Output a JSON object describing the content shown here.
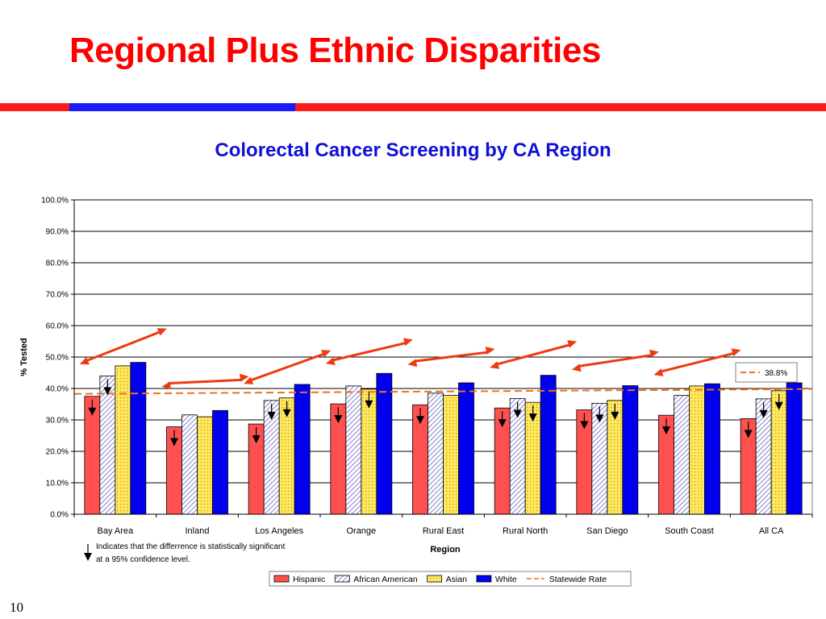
{
  "slide": {
    "title": "Regional Plus Ethnic Disparities",
    "number": "10",
    "colors": {
      "title": "#ff0000",
      "rule_red": "#ff1a1a",
      "rule_blue": "#1a1aff"
    }
  },
  "chart_data": {
    "type": "bar",
    "title": "Colorectal Cancer Screening by CA Region",
    "xlabel": "Region",
    "ylabel": "% Tested",
    "ylim": [
      0,
      100
    ],
    "yticks": [
      "0.0%",
      "10.0%",
      "20.0%",
      "30.0%",
      "40.0%",
      "50.0%",
      "60.0%",
      "70.0%",
      "80.0%",
      "90.0%",
      "100.0%"
    ],
    "grid": true,
    "categories": [
      "Bay Area",
      "Inland",
      "Los Angeles",
      "Orange",
      "Rural East",
      "Rural North",
      "San Diego",
      "South Coast",
      "All CA"
    ],
    "series": [
      {
        "name": "Hispanic",
        "color": "#ff5050",
        "pattern": "solid",
        "values": [
          37.5,
          27.8,
          28.7,
          35.1,
          34.8,
          33.8,
          33.2,
          31.5,
          30.4
        ],
        "significant": [
          true,
          true,
          true,
          true,
          true,
          true,
          true,
          true,
          true
        ]
      },
      {
        "name": "African American",
        "color": "#c8c8f0",
        "pattern": "diagonal",
        "values": [
          44.0,
          31.6,
          36.2,
          40.8,
          38.5,
          36.8,
          35.3,
          37.8,
          36.7
        ],
        "significant": [
          true,
          false,
          true,
          false,
          false,
          true,
          true,
          false,
          true
        ]
      },
      {
        "name": "Asian",
        "color": "#ffe860",
        "pattern": "dots",
        "values": [
          47.2,
          31.0,
          37.0,
          39.8,
          37.8,
          35.6,
          36.2,
          40.8,
          39.3
        ],
        "significant": [
          false,
          false,
          true,
          true,
          false,
          true,
          true,
          false,
          true
        ]
      },
      {
        "name": "White",
        "color": "#0000ee",
        "pattern": "solid",
        "values": [
          48.3,
          33.0,
          41.3,
          44.8,
          41.8,
          44.2,
          40.9,
          41.5,
          41.8
        ],
        "significant": [
          false,
          false,
          false,
          false,
          false,
          false,
          false,
          false,
          false
        ]
      }
    ],
    "reference_line": {
      "name": "Statewide Rate",
      "value": 38.8,
      "label": "38.8%",
      "color": "#f07020"
    },
    "legend": {
      "placement": "bottom",
      "entries": [
        "Hispanic",
        "African American",
        "Asian",
        "White",
        "Statewide Rate"
      ]
    },
    "significance_note": {
      "line1": "Indicates that the differrence is statistically  significant",
      "line2": "at a 95% confidence level."
    },
    "arrow_color": "#ee3a10"
  }
}
